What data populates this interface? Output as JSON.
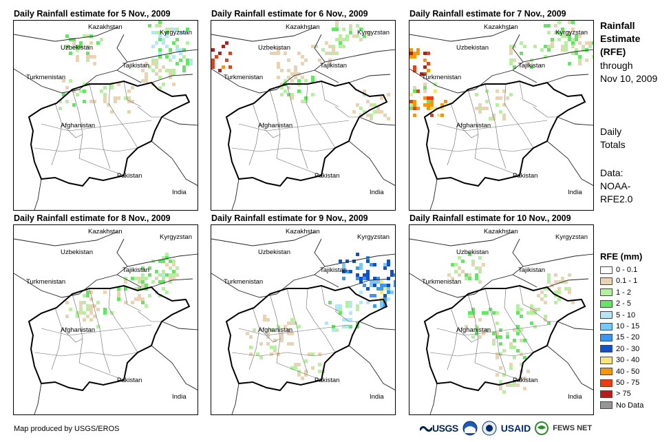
{
  "panels": [
    {
      "title": "Daily Rainfall estimate for 5 Nov., 2009"
    },
    {
      "title": "Daily Rainfall estimate for 6 Nov., 2009"
    },
    {
      "title": "Daily Rainfall estimate for 7 Nov., 2009"
    },
    {
      "title": "Daily Rainfall estimate for 8 Nov., 2009"
    },
    {
      "title": "Daily Rainfall estimate for 9 Nov., 2009"
    },
    {
      "title": "Daily Rainfall estimate for 10 Nov., 2009"
    }
  ],
  "map_labels": {
    "kazakhstan": "Kazakhstan",
    "kyrgyzstan": "Kyrgyzstan",
    "uzbekistan": "Uzbekistan",
    "tajikistan": "Tajikistan",
    "turkmenistan": "Turkmenistan",
    "afghanistan": "Afghanistan",
    "pakistan": "Pakistan",
    "india": "India"
  },
  "sidebar": {
    "line1": "Rainfall",
    "line2": "Estimate",
    "line3": "(RFE)",
    "line4": "through",
    "line5": "Nov 10, 2009",
    "daily1": "Daily",
    "daily2": "Totals",
    "data1": "Data:",
    "data2": "NOAA-",
    "data3": "RFE2.0"
  },
  "legend": {
    "title": "RFE (mm)",
    "items": [
      {
        "label": "0 - 0.1",
        "color": "#ffffff"
      },
      {
        "label": "0.1 - 1",
        "color": "#e8d4b4"
      },
      {
        "label": "1 - 2",
        "color": "#b4f0a0"
      },
      {
        "label": "2 - 5",
        "color": "#64e664"
      },
      {
        "label": "5 - 10",
        "color": "#b4e6fa"
      },
      {
        "label": "10 - 15",
        "color": "#78c8fa"
      },
      {
        "label": "15 - 20",
        "color": "#3c96f0"
      },
      {
        "label": "20 - 30",
        "color": "#1450c8"
      },
      {
        "label": "30 - 40",
        "color": "#fae678"
      },
      {
        "label": "40 - 50",
        "color": "#fa9600"
      },
      {
        "label": "50 - 75",
        "color": "#f03c14"
      },
      {
        "label": "> 75",
        "color": "#b41e1e"
      },
      {
        "label": "No Data",
        "color": "#969696"
      }
    ]
  },
  "footer": {
    "credit": "Map produced by USGS/EROS",
    "logo_usgs": "USGS",
    "logo_usaid": "USAID",
    "logo_fews": "FEWS NET"
  }
}
